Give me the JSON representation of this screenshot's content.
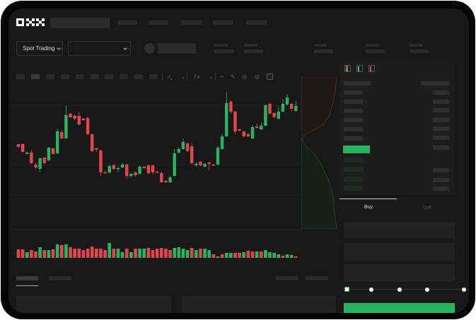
{
  "header": {
    "logo_text": "OKX",
    "market_select": {
      "label": "Spot Trading",
      "icon": "chevron-down-icon"
    },
    "pair_select": {
      "value": "",
      "icon": "chevron-down-icon"
    }
  },
  "order_book": {
    "view_icons": [
      "orderbook-both-icon",
      "orderbook-bids-icon",
      "orderbook-asks-icon"
    ]
  },
  "trade_form": {
    "tabs": [
      {
        "label": "Buy",
        "active": true
      },
      {
        "label": "Sell",
        "active": false
      }
    ],
    "slider_percent": 0,
    "slider_steps": 5
  },
  "colors": {
    "up": "#27b45f",
    "down": "#e0464a",
    "background": "#181818",
    "panel": "#1d1d1d"
  },
  "chart_data": {
    "type": "candlestick",
    "title": "",
    "xlabel": "",
    "ylabel": "",
    "grid": true,
    "candles_ochl": [
      [
        97,
        93,
        97,
        92
      ],
      [
        97,
        86,
        98,
        85
      ],
      [
        83,
        85,
        86,
        83
      ],
      [
        85,
        70,
        89,
        69
      ],
      [
        68,
        64,
        71,
        62
      ],
      [
        62,
        77,
        78,
        57
      ],
      [
        78,
        70,
        79,
        68
      ],
      [
        74,
        92,
        93,
        73
      ],
      [
        91,
        83,
        92,
        82
      ],
      [
        84,
        115,
        119,
        83
      ],
      [
        114,
        105,
        117,
        104
      ],
      [
        105,
        138,
        152,
        105
      ],
      [
        140,
        135,
        141,
        134
      ],
      [
        137,
        133,
        139,
        131
      ],
      [
        137,
        125,
        142,
        123
      ],
      [
        133,
        131,
        134,
        130
      ],
      [
        134,
        111,
        136,
        110
      ],
      [
        111,
        87,
        112,
        86
      ],
      [
        91,
        89,
        92,
        86
      ],
      [
        88,
        57,
        89,
        52
      ],
      [
        57,
        56,
        59,
        55
      ],
      [
        57,
        66,
        67,
        55
      ],
      [
        67,
        62,
        69,
        60
      ],
      [
        62,
        63,
        65,
        57
      ],
      [
        64,
        68,
        71,
        63
      ],
      [
        68,
        52,
        69,
        48
      ],
      [
        52,
        55,
        56,
        50
      ],
      [
        57,
        53,
        58,
        51
      ],
      [
        55,
        65,
        67,
        54
      ],
      [
        65,
        63,
        66,
        62
      ],
      [
        67,
        56,
        68,
        54
      ],
      [
        67,
        57,
        68,
        54
      ],
      [
        58,
        57,
        59,
        56
      ],
      [
        56,
        43,
        58,
        42
      ],
      [
        45,
        43,
        46,
        42
      ],
      [
        43,
        50,
        52,
        42
      ],
      [
        52,
        84,
        90,
        51
      ],
      [
        85,
        90,
        93,
        84
      ],
      [
        90,
        100,
        105,
        89
      ],
      [
        98,
        87,
        99,
        86
      ],
      [
        94,
        70,
        99,
        68
      ],
      [
        67,
        69,
        71,
        65
      ],
      [
        72,
        67,
        73,
        66
      ],
      [
        65,
        69,
        70,
        64
      ],
      [
        71,
        69,
        72,
        60
      ],
      [
        68,
        67,
        69,
        66
      ],
      [
        68,
        92,
        95,
        67
      ],
      [
        90,
        108,
        111,
        89
      ],
      [
        108,
        155,
        171,
        107
      ],
      [
        157,
        143,
        159,
        140
      ],
      [
        143,
        115,
        144,
        111
      ],
      [
        118,
        116,
        119,
        115
      ],
      [
        115,
        108,
        116,
        107
      ],
      [
        111,
        108,
        113,
        107
      ],
      [
        105,
        121,
        124,
        104
      ],
      [
        122,
        120,
        126,
        119
      ],
      [
        118,
        123,
        128,
        117
      ],
      [
        123,
        152,
        153,
        122
      ],
      [
        154,
        140,
        155,
        139
      ],
      [
        141,
        135,
        142,
        134
      ],
      [
        133,
        143,
        150,
        132
      ],
      [
        143,
        154,
        161,
        142
      ],
      [
        153,
        163,
        168,
        152
      ],
      [
        154,
        147,
        155,
        144
      ],
      [
        144,
        151,
        158,
        143
      ]
    ],
    "volume": [
      {
        "v": 12,
        "d": "down"
      },
      {
        "v": 12,
        "d": "down"
      },
      {
        "v": 8,
        "d": "up"
      },
      {
        "v": 11,
        "d": "down"
      },
      {
        "v": 9,
        "d": "down"
      },
      {
        "v": 15,
        "d": "up"
      },
      {
        "v": 11,
        "d": "down"
      },
      {
        "v": 11,
        "d": "up"
      },
      {
        "v": 12,
        "d": "down"
      },
      {
        "v": 19,
        "d": "up"
      },
      {
        "v": 18,
        "d": "down"
      },
      {
        "v": 19,
        "d": "up"
      },
      {
        "v": 15,
        "d": "down"
      },
      {
        "v": 13,
        "d": "down"
      },
      {
        "v": 13,
        "d": "down"
      },
      {
        "v": 11,
        "d": "down"
      },
      {
        "v": 13,
        "d": "down"
      },
      {
        "v": 16,
        "d": "down"
      },
      {
        "v": 13,
        "d": "down"
      },
      {
        "v": 13,
        "d": "down"
      },
      {
        "v": 11,
        "d": "down"
      },
      {
        "v": 21,
        "d": "up"
      },
      {
        "v": 13,
        "d": "down"
      },
      {
        "v": 13,
        "d": "up"
      },
      {
        "v": 8,
        "d": "up"
      },
      {
        "v": 13,
        "d": "down"
      },
      {
        "v": 8,
        "d": "up"
      },
      {
        "v": 13,
        "d": "down"
      },
      {
        "v": 13,
        "d": "up"
      },
      {
        "v": 13,
        "d": "up"
      },
      {
        "v": 14,
        "d": "down"
      },
      {
        "v": 11,
        "d": "down"
      },
      {
        "v": 13,
        "d": "down"
      },
      {
        "v": 14,
        "d": "down"
      },
      {
        "v": 13,
        "d": "down"
      },
      {
        "v": 11,
        "d": "down"
      },
      {
        "v": 14,
        "d": "up"
      },
      {
        "v": 15,
        "d": "up"
      },
      {
        "v": 13,
        "d": "up"
      },
      {
        "v": 11,
        "d": "up"
      },
      {
        "v": 14,
        "d": "down"
      },
      {
        "v": 11,
        "d": "up"
      },
      {
        "v": 13,
        "d": "down"
      },
      {
        "v": 13,
        "d": "up"
      },
      {
        "v": 11,
        "d": "up"
      },
      {
        "v": 5,
        "d": "down"
      },
      {
        "v": 2,
        "d": "up"
      },
      {
        "v": 5,
        "d": "down"
      },
      {
        "v": 7,
        "d": "up"
      },
      {
        "v": 7,
        "d": "up"
      },
      {
        "v": 7,
        "d": "down"
      },
      {
        "v": 7,
        "d": "down"
      },
      {
        "v": 8,
        "d": "up"
      },
      {
        "v": 10,
        "d": "down"
      },
      {
        "v": 9,
        "d": "down"
      },
      {
        "v": 9,
        "d": "up"
      },
      {
        "v": 9,
        "d": "down"
      },
      {
        "v": 11,
        "d": "up"
      },
      {
        "v": 8,
        "d": "up"
      },
      {
        "v": 7,
        "d": "up"
      },
      {
        "v": 5,
        "d": "up"
      },
      {
        "v": 3,
        "d": "down"
      },
      {
        "v": 5,
        "d": "up"
      },
      {
        "v": 4,
        "d": "up"
      },
      {
        "v": 2,
        "d": "down"
      }
    ]
  }
}
